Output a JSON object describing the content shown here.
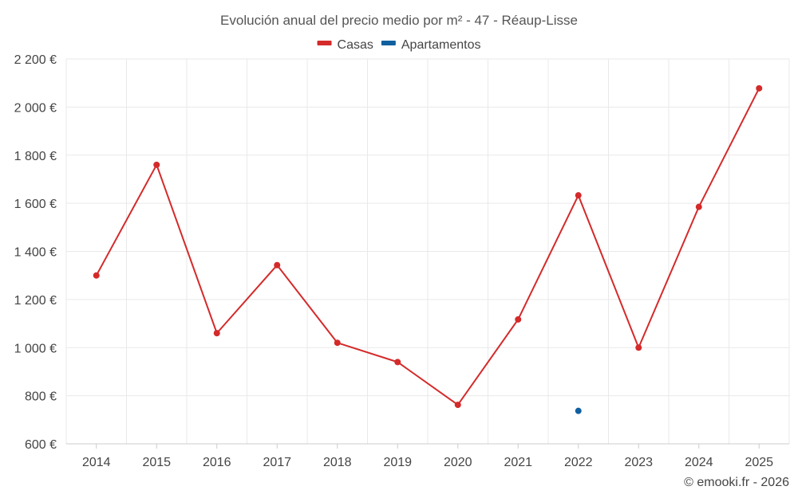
{
  "chart_data": {
    "type": "line",
    "title": "Evolución anual del precio medio por m² - 47 - Réaup-Lisse",
    "categories": [
      "2014",
      "2015",
      "2016",
      "2017",
      "2018",
      "2019",
      "2020",
      "2021",
      "2022",
      "2023",
      "2024",
      "2025"
    ],
    "series": [
      {
        "name": "Casas",
        "color": "#d42a2a",
        "values": [
          1300,
          1760,
          1060,
          1343,
          1020,
          940,
          762,
          1117,
          1633,
          1000,
          1585,
          2078
        ]
      },
      {
        "name": "Apartamentos",
        "color": "#1060a0",
        "values": [
          null,
          null,
          null,
          null,
          null,
          null,
          null,
          null,
          737,
          null,
          null,
          null
        ]
      }
    ],
    "ylim": [
      600,
      2200
    ],
    "yticks": [
      600,
      800,
      1000,
      1200,
      1400,
      1600,
      1800,
      2000,
      2200
    ],
    "ytick_labels": [
      "600 €",
      "800 €",
      "1 000 €",
      "1 200 €",
      "1 400 €",
      "1 600 €",
      "1 800 €",
      "2 000 €",
      "2 200 €"
    ],
    "grid": true,
    "legend_position": "top-center",
    "xlabel": "",
    "ylabel": ""
  },
  "credit": "© emooki.fr - 2026"
}
